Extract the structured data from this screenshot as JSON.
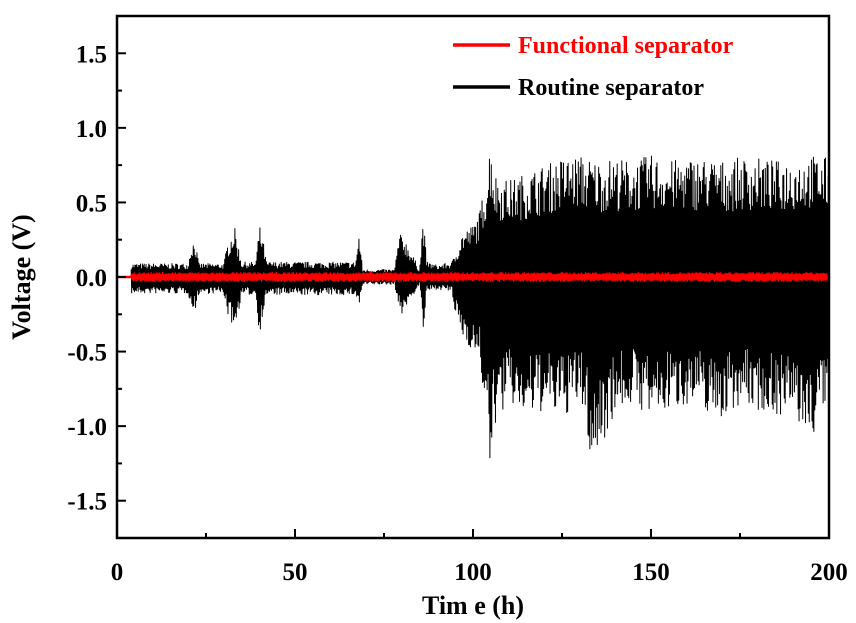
{
  "chart_data": {
    "type": "line",
    "title": "",
    "xlabel": "Tim e (h)",
    "ylabel": "Voltage (V)",
    "xlim": [
      0,
      200
    ],
    "ylim": [
      -1.75,
      1.75
    ],
    "xticks": [
      0,
      50,
      100,
      150,
      200
    ],
    "xtick_labels": [
      "0",
      "50",
      "100",
      "150",
      "200"
    ],
    "yticks": [
      -1.5,
      -1.0,
      -0.5,
      0.0,
      0.5,
      1.0,
      1.5
    ],
    "ytick_labels": [
      "-1.5",
      "-1.0",
      "-0.5",
      "0.0",
      "0.5",
      "1.0",
      "1.5"
    ],
    "legend_position": "top-right",
    "grid": false,
    "series": [
      {
        "name": "Functional separator",
        "color": "#ff0000",
        "x": [
          0,
          4,
          5,
          200
        ],
        "y": [
          0,
          0,
          0,
          0
        ],
        "envelope": {
          "x": [
            4,
            200
          ],
          "upper": [
            0.03,
            0.03
          ],
          "lower": [
            -0.03,
            -0.03
          ]
        }
      },
      {
        "name": "Routine separator",
        "color": "#000000",
        "x": [
          0,
          4,
          200
        ],
        "y": [
          0,
          0,
          0
        ],
        "envelope": {
          "x": [
            4,
            20,
            21,
            22,
            23,
            30,
            31,
            33,
            34,
            35,
            39,
            40,
            41,
            42,
            50,
            55,
            60,
            67,
            68,
            69,
            70,
            78,
            79,
            80,
            85,
            86,
            87,
            90,
            94,
            95,
            97,
            100,
            102,
            103,
            104,
            105,
            106,
            110,
            115,
            120,
            125,
            130,
            132,
            133,
            135,
            140,
            145,
            150,
            155,
            160,
            165,
            170,
            175,
            180,
            185,
            190,
            195,
            200
          ],
          "upper": [
            0.09,
            0.09,
            0.24,
            0.24,
            0.09,
            0.09,
            0.22,
            0.34,
            0.22,
            0.1,
            0.1,
            0.35,
            0.25,
            0.1,
            0.1,
            0.1,
            0.1,
            0.1,
            0.3,
            0.05,
            0.05,
            0.05,
            0.25,
            0.3,
            0.05,
            0.42,
            0.1,
            0.08,
            0.1,
            0.15,
            0.3,
            0.35,
            0.45,
            0.6,
            0.7,
            0.97,
            0.7,
            0.65,
            0.7,
            0.75,
            0.8,
            0.82,
            0.8,
            0.8,
            0.78,
            0.8,
            0.78,
            0.82,
            0.78,
            0.8,
            0.8,
            0.78,
            0.8,
            0.8,
            0.78,
            0.8,
            0.82,
            0.8
          ],
          "lower": [
            -0.11,
            -0.11,
            -0.22,
            -0.22,
            -0.11,
            -0.11,
            -0.25,
            -0.35,
            -0.25,
            -0.12,
            -0.12,
            -0.39,
            -0.25,
            -0.12,
            -0.12,
            -0.12,
            -0.12,
            -0.12,
            -0.2,
            -0.05,
            -0.05,
            -0.05,
            -0.2,
            -0.25,
            -0.05,
            -0.38,
            -0.1,
            -0.08,
            -0.1,
            -0.25,
            -0.4,
            -0.5,
            -0.6,
            -0.8,
            -1.1,
            -1.39,
            -1.0,
            -0.85,
            -0.95,
            -0.9,
            -0.95,
            -0.85,
            -1.0,
            -1.28,
            -1.2,
            -0.9,
            -0.85,
            -0.95,
            -0.9,
            -0.85,
            -0.9,
            -0.95,
            -0.85,
            -0.9,
            -0.92,
            -0.95,
            -1.1,
            -0.8
          ]
        }
      }
    ]
  }
}
